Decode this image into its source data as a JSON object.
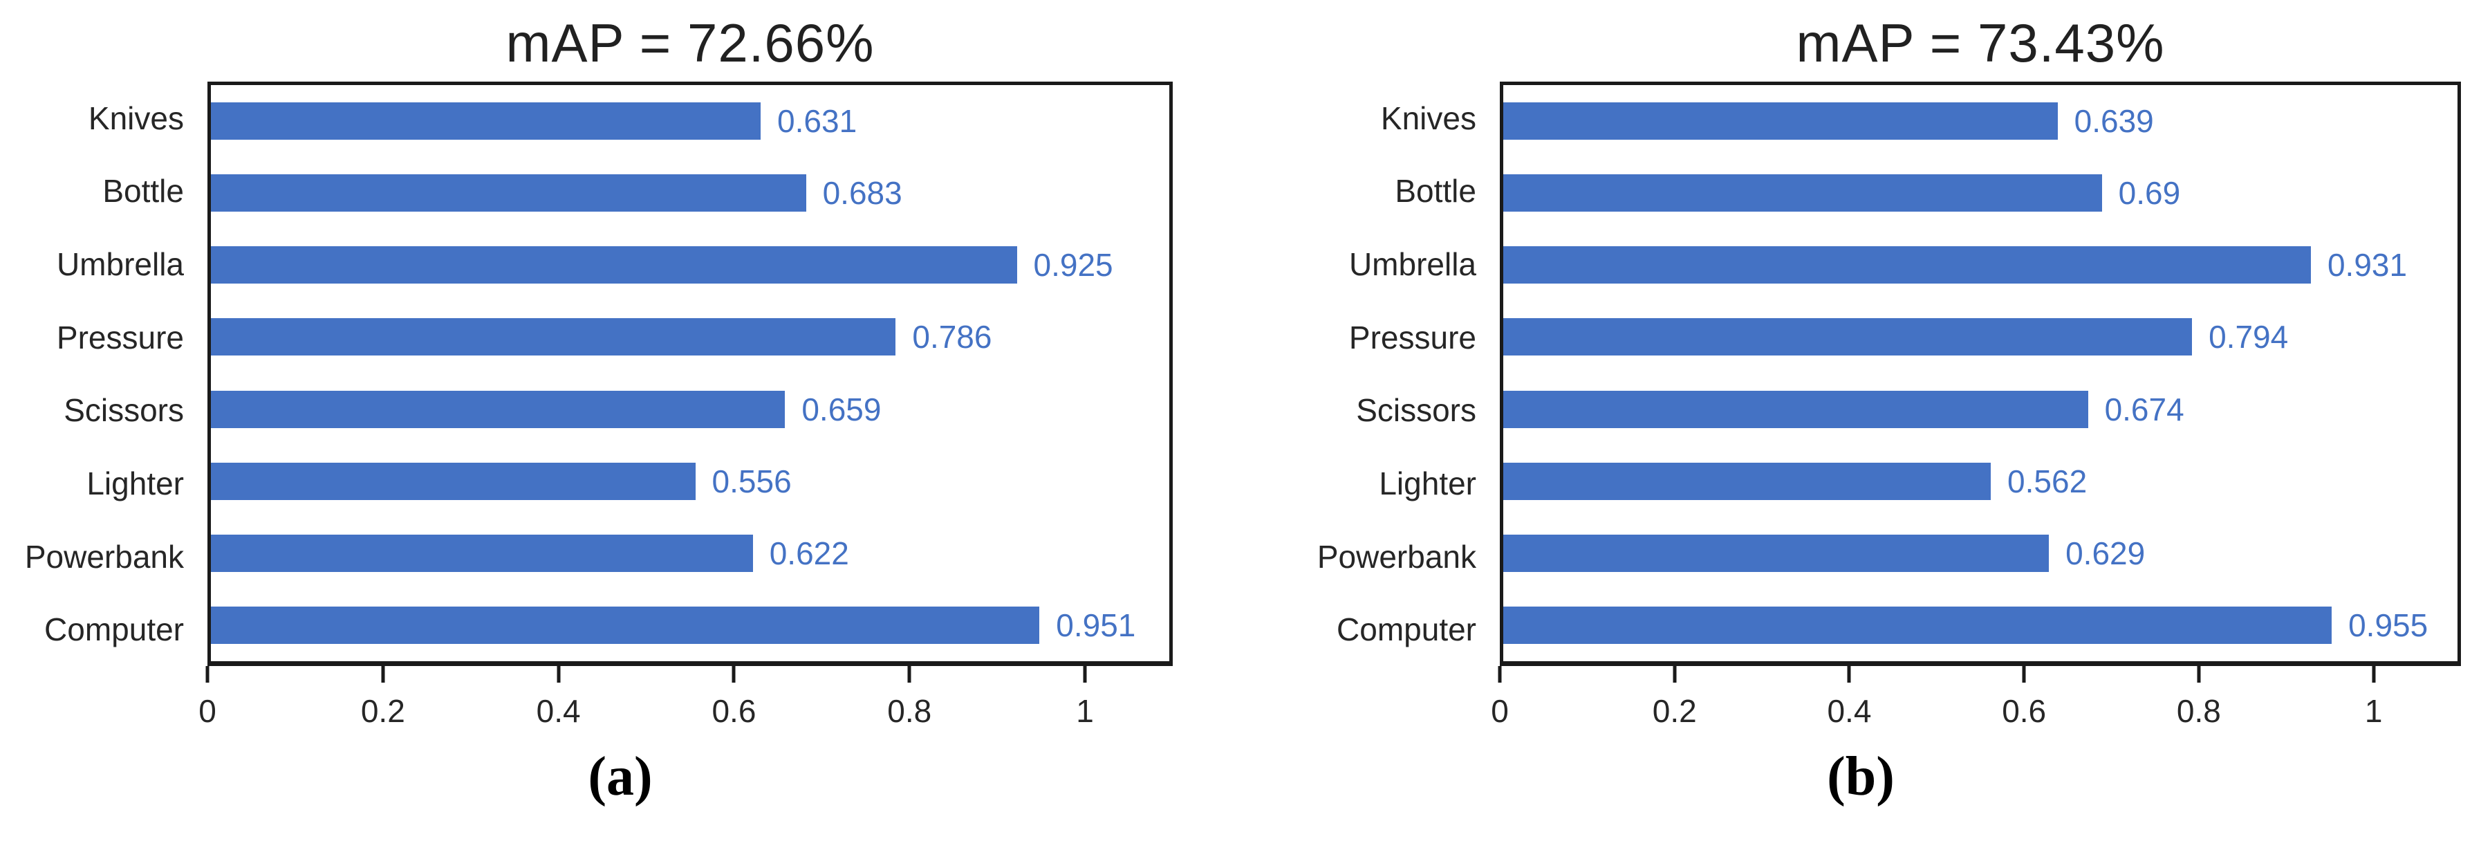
{
  "style": {
    "axis_color": "#1a1a1a",
    "text_color": "#262626",
    "background": "#ffffff"
  },
  "chart_data": [
    {
      "type": "bar",
      "orientation": "horizontal",
      "title": "mAP = 72.66%",
      "caption": "(a)",
      "categories": [
        "Knives",
        "Bottle",
        "Umbrella",
        "Pressure",
        "Scissors",
        "Lighter",
        "Powerbank",
        "Computer"
      ],
      "values": [
        0.631,
        0.683,
        0.925,
        0.786,
        0.659,
        0.556,
        0.622,
        0.951
      ],
      "value_labels": [
        "0.631",
        "0.683",
        "0.925",
        "0.786",
        "0.659",
        "0.556",
        "0.622",
        "0.951"
      ],
      "xlim": [
        0,
        1.1
      ],
      "x_ticks": [
        0,
        0.2,
        0.4,
        0.6,
        0.8,
        1
      ],
      "x_tick_labels": [
        "0",
        "0.2",
        "0.4",
        "0.6",
        "0.8",
        "1"
      ],
      "bar_color": "#4472C4",
      "label_color": "#4472C4",
      "grid": false,
      "legend": null
    },
    {
      "type": "bar",
      "orientation": "horizontal",
      "title": "mAP = 73.43%",
      "caption": "(b)",
      "categories": [
        "Knives",
        "Bottle",
        "Umbrella",
        "Pressure",
        "Scissors",
        "Lighter",
        "Powerbank",
        "Computer"
      ],
      "values": [
        0.639,
        0.69,
        0.931,
        0.794,
        0.674,
        0.562,
        0.629,
        0.955
      ],
      "value_labels": [
        "0.639",
        "0.69",
        "0.931",
        "0.794",
        "0.674",
        "0.562",
        "0.629",
        "0.955"
      ],
      "xlim": [
        0,
        1.1
      ],
      "x_ticks": [
        0,
        0.2,
        0.4,
        0.6,
        0.8,
        1
      ],
      "x_tick_labels": [
        "0",
        "0.2",
        "0.4",
        "0.6",
        "0.8",
        "1"
      ],
      "bar_color": "#4472C4",
      "label_color": "#4472C4",
      "grid": false,
      "legend": null
    }
  ]
}
